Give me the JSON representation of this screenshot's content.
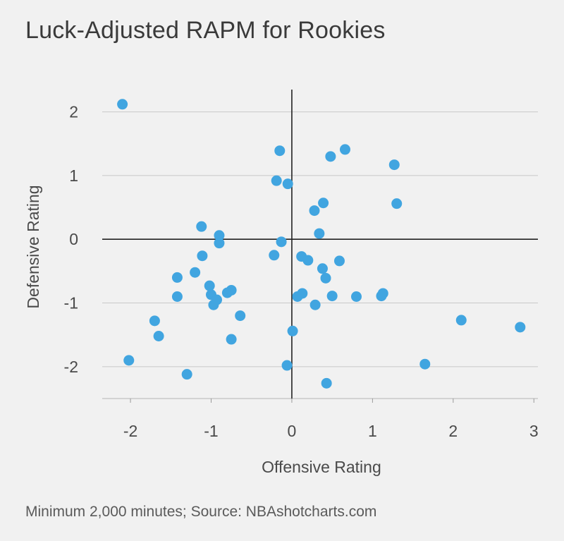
{
  "title": "Luck-Adjusted RAPM for Rookies",
  "footnote": "Minimum 2,000 minutes; Source: NBAshotcharts.com",
  "colors": {
    "background": "#f1f1f1",
    "point": "#41a5e0",
    "grid": "#c8c8c8",
    "axis": "#222222",
    "text": "#4a4a4a"
  },
  "chart_data": {
    "type": "scatter",
    "title": "Luck-Adjusted RAPM for Rookies",
    "xlabel": "Offensive Rating",
    "ylabel": "Defensive Rating",
    "xlim": [
      -2.35,
      3.05
    ],
    "ylim": [
      -2.5,
      2.35
    ],
    "xticks": [
      -2,
      -1,
      0,
      1,
      2,
      3
    ],
    "xtick_labels": [
      "-2",
      "-1",
      "0",
      "1",
      "2",
      "3"
    ],
    "yticks": [
      -2,
      -1,
      0,
      1,
      2
    ],
    "ytick_labels": [
      "-2",
      "-1",
      "0",
      "1",
      "2"
    ],
    "grid": "horizontal",
    "legend": "none",
    "series": [
      {
        "x": [
          -2.1,
          -2.02,
          -1.7,
          -1.65,
          -1.42,
          -1.42,
          -1.3,
          -1.2,
          -1.12,
          -1.11,
          -1.02,
          -1.0,
          -0.97,
          -0.93,
          -0.9,
          -0.9,
          -0.8,
          -0.75,
          -0.75,
          -0.64,
          -0.22,
          -0.19,
          -0.15,
          -0.13,
          -0.05,
          -0.06,
          0.01,
          0.07,
          0.12,
          0.13,
          0.2,
          0.28,
          0.29,
          0.34,
          0.39,
          0.38,
          0.42,
          0.43,
          0.48,
          0.5,
          0.59,
          0.66,
          0.8,
          1.11,
          1.13,
          1.27,
          1.3,
          1.65,
          2.1,
          2.83
        ],
        "y": [
          2.12,
          -1.9,
          -1.28,
          -1.52,
          -0.6,
          -0.9,
          -2.12,
          -0.52,
          0.2,
          -0.26,
          -0.73,
          -0.87,
          -1.03,
          -0.95,
          0.06,
          -0.06,
          -0.84,
          -0.8,
          -1.57,
          -1.2,
          -0.25,
          0.92,
          1.39,
          -0.04,
          0.87,
          -1.98,
          -1.44,
          -0.9,
          -0.27,
          -0.85,
          -0.33,
          0.45,
          -1.03,
          0.09,
          0.57,
          -0.46,
          -0.61,
          -2.26,
          1.3,
          -0.89,
          -0.34,
          1.41,
          -0.9,
          -0.89,
          -0.85,
          1.17,
          0.56,
          -1.96,
          -1.27,
          -1.38
        ]
      }
    ]
  }
}
